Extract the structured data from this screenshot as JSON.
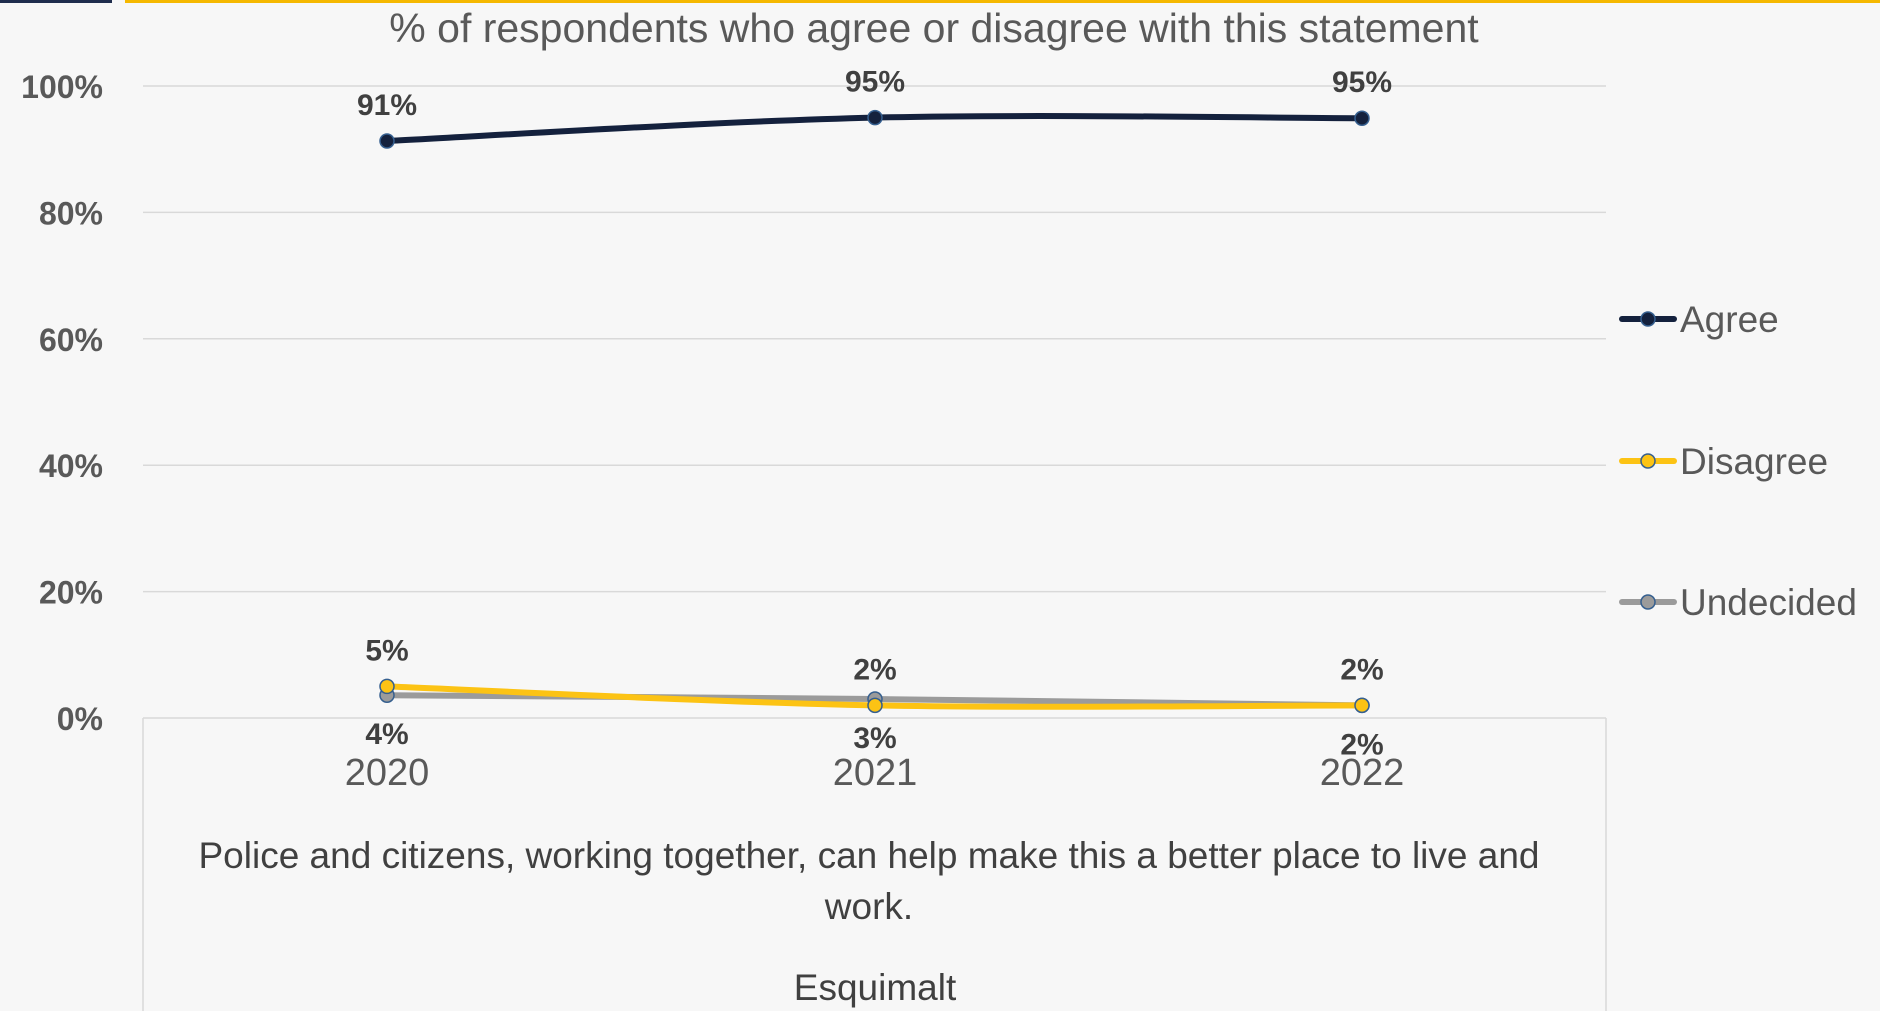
{
  "chart_data": {
    "type": "line",
    "title": "% of respondents who agree or disagree with this statement",
    "categories": [
      "2020",
      "2021",
      "2022"
    ],
    "category_group_labels": [
      "Police and citizens, working together, can help make this a better place to live and",
      "work.",
      "Esquimalt"
    ],
    "ylim": [
      0,
      100
    ],
    "yticks": [
      0,
      20,
      40,
      60,
      80,
      100
    ],
    "ytick_labels": [
      "0%",
      "20%",
      "40%",
      "60%",
      "80%",
      "100%"
    ],
    "legend_position": "right",
    "grid": true,
    "series": [
      {
        "name": "Agree",
        "values": [
          91.3,
          95,
          94.9
        ],
        "labels": [
          "91%",
          "95%",
          "95%"
        ],
        "color": "#14213d",
        "label_position": "above"
      },
      {
        "name": "Disagree",
        "values": [
          5,
          2,
          2
        ],
        "labels": [
          "5%",
          "2%",
          "2%"
        ],
        "color": "#fcc314",
        "label_position": "above"
      },
      {
        "name": "Undecided",
        "values": [
          3.6,
          3,
          2
        ],
        "labels": [
          "4%",
          "3%",
          "2%"
        ],
        "color": "#9b9b9b",
        "label_position": "below"
      }
    ]
  },
  "colors": {
    "accent_bar": "#f5b800",
    "grid": "#d9d9d9"
  }
}
